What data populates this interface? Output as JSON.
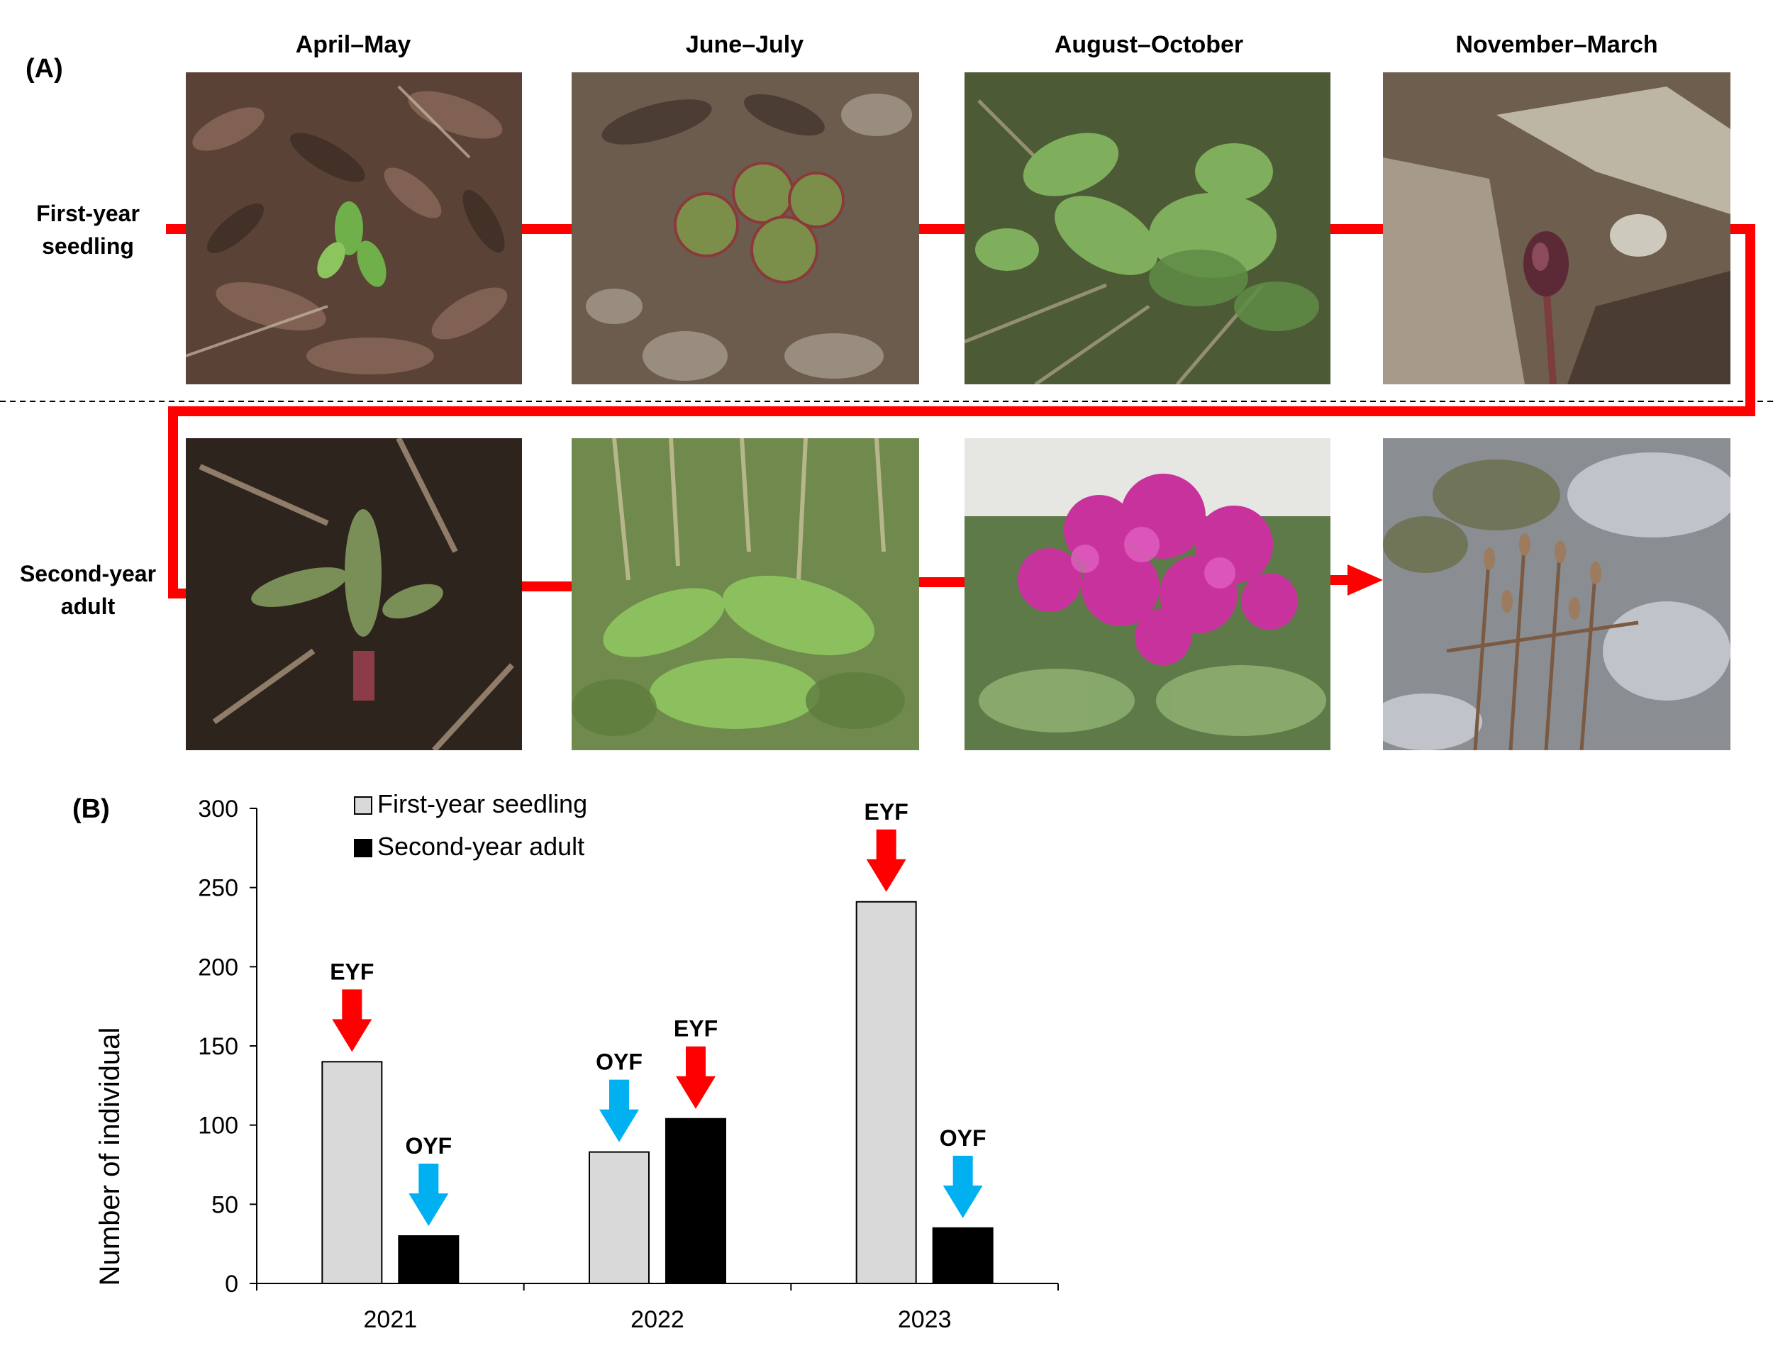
{
  "panel_a": {
    "label": "(A)",
    "seasons": [
      "April–May",
      "June–July",
      "August–October",
      "November–March"
    ],
    "rows": [
      "First-year\nseedling",
      "Second-year\nadult"
    ],
    "photos": [
      "seedling-april-may",
      "seedling-june-july",
      "seedling-august-october",
      "seedling-november-march",
      "adult-april-may",
      "adult-june-july",
      "adult-august-october",
      "adult-november-march"
    ]
  },
  "panel_b": {
    "label": "(B)"
  },
  "chart_data": {
    "type": "bar",
    "categories": [
      "2021",
      "2022",
      "2023"
    ],
    "series": [
      {
        "name": "First-year seedling",
        "values": [
          140,
          83,
          241
        ],
        "color": "#d9d9d9"
      },
      {
        "name": "Second-year adult",
        "values": [
          30,
          104,
          35
        ],
        "color": "#000000"
      }
    ],
    "ylabel": "Number of individual",
    "xlabel": "",
    "ylim": [
      0,
      300
    ],
    "yticks": [
      0,
      50,
      100,
      150,
      200,
      250,
      300
    ],
    "legend": "top-left",
    "annotations": [
      {
        "category": "2021",
        "series": "First-year seedling",
        "text": "EYF",
        "arrow_color": "#ff0000"
      },
      {
        "category": "2021",
        "series": "Second-year adult",
        "text": "OYF",
        "arrow_color": "#00b0f0"
      },
      {
        "category": "2022",
        "series": "First-year seedling",
        "text": "OYF",
        "arrow_color": "#00b0f0"
      },
      {
        "category": "2022",
        "series": "Second-year adult",
        "text": "EYF",
        "arrow_color": "#ff0000"
      },
      {
        "category": "2023",
        "series": "First-year seedling",
        "text": "EYF",
        "arrow_color": "#ff0000"
      },
      {
        "category": "2023",
        "series": "Second-year adult",
        "text": "OYF",
        "arrow_color": "#00b0f0"
      }
    ]
  }
}
